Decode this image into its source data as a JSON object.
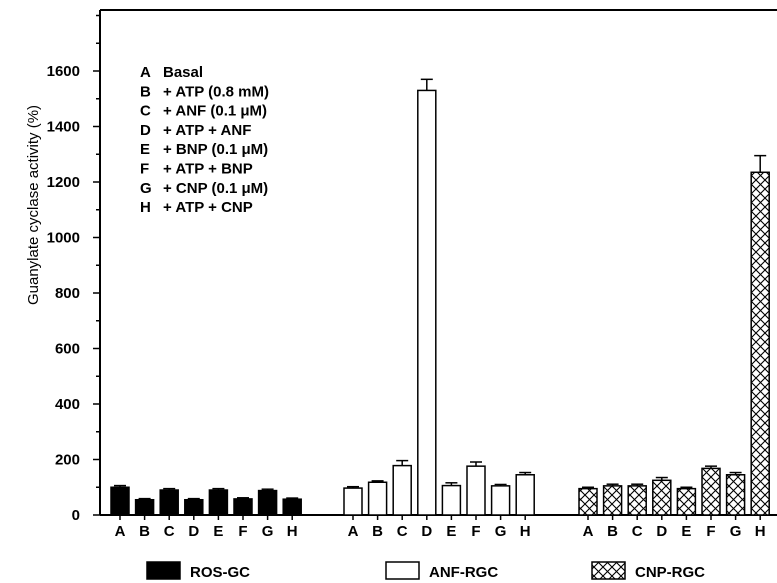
{
  "chart_data": {
    "type": "bar",
    "ylabel": "Guanylate cyclase activity (%)",
    "ylim": [
      0,
      1800
    ],
    "yticks": [
      0,
      200,
      400,
      600,
      800,
      1000,
      1200,
      1400,
      1600
    ],
    "categories": [
      "A",
      "B",
      "C",
      "D",
      "E",
      "F",
      "G",
      "H"
    ],
    "key": [
      {
        "letter": "A",
        "text": "Basal"
      },
      {
        "letter": "B",
        "text": "+ ATP (0.8 mM)"
      },
      {
        "letter": "C",
        "text": "+ ANF (0.1 μM)"
      },
      {
        "letter": "D",
        "text": "+ ATP + ANF"
      },
      {
        "letter": "E",
        "text": "+ BNP (0.1 μM)"
      },
      {
        "letter": "F",
        "text": "+ ATP + BNP"
      },
      {
        "letter": "G",
        "text": "+ CNP (0.1 μM)"
      },
      {
        "letter": "H",
        "text": "+ ATP + CNP"
      }
    ],
    "series": [
      {
        "name": "ROS-GC",
        "fill": "solid",
        "values": [
          100,
          55,
          90,
          55,
          90,
          58,
          88,
          57
        ],
        "errors": [
          6,
          4,
          5,
          4,
          5,
          4,
          5,
          4
        ]
      },
      {
        "name": "ANF-RGC",
        "fill": "open",
        "values": [
          97,
          118,
          178,
          1530,
          106,
          176,
          105,
          145
        ],
        "errors": [
          5,
          5,
          18,
          40,
          10,
          15,
          5,
          8
        ]
      },
      {
        "name": "CNP-RGC",
        "fill": "crosshatch",
        "values": [
          95,
          105,
          105,
          125,
          95,
          168,
          145,
          1235
        ],
        "errors": [
          5,
          6,
          6,
          10,
          5,
          8,
          8,
          60
        ]
      }
    ],
    "grid": false,
    "legend_position": "bottom"
  }
}
